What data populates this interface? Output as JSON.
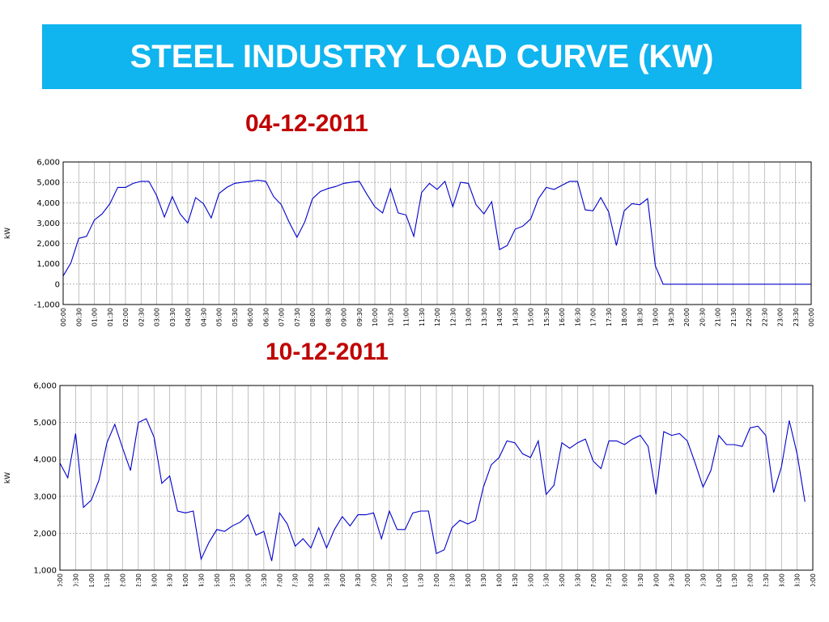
{
  "page": {
    "title": "STEEL INDUSTRY LOAD CURVE (KW)",
    "banner_color": "#10b4ee",
    "date_color": "#c00000",
    "line_color": "#0000cc"
  },
  "chart_data": [
    {
      "type": "line",
      "title": "04-12-2011",
      "ylabel": "kW",
      "xlabel": "",
      "ylim": [
        -1000,
        6000
      ],
      "yticks": [
        -1000,
        0,
        1000,
        2000,
        3000,
        4000,
        5000,
        6000
      ],
      "ytick_labels": [
        "-1,000",
        "0",
        "1,000",
        "2,000",
        "3,000",
        "4,000",
        "5,000",
        "6,000"
      ],
      "x_interval_minutes": 15,
      "xtick_labels": [
        "00:00",
        "00:30",
        "01:00",
        "01:30",
        "02:00",
        "02:30",
        "03:00",
        "03:30",
        "04:00",
        "04:30",
        "05:00",
        "05:30",
        "06:00",
        "06:30",
        "07:00",
        "07:30",
        "08:00",
        "08:30",
        "09:00",
        "09:30",
        "10:00",
        "10:30",
        "11:00",
        "11:30",
        "12:00",
        "12:30",
        "13:00",
        "13:30",
        "14:00",
        "14:30",
        "15:00",
        "15:30",
        "16:00",
        "16:30",
        "17:00",
        "17:30",
        "18:00",
        "18:30",
        "19:00",
        "19:30",
        "20:00",
        "20:30",
        "21:00",
        "21:30",
        "22:00",
        "22:30",
        "23:00",
        "23:30",
        "00:00"
      ],
      "grid": true,
      "series": [
        {
          "values": [
            400,
            1050,
            2250,
            2350,
            3150,
            3450,
            3950,
            4750,
            4750,
            4950,
            5050,
            5050,
            4350,
            3300,
            4300,
            3450,
            3000,
            4250,
            3950,
            3250,
            4450,
            4750,
            4950,
            5000,
            5050,
            5100,
            5050,
            4300,
            3900,
            3050,
            2300,
            3050,
            4200,
            4550,
            4700,
            4800,
            4950,
            5000,
            5050,
            4400,
            3800,
            3500,
            4700,
            3500,
            3400,
            2350,
            4500,
            4950,
            4650,
            5050,
            3800,
            5000,
            4950,
            3900,
            3450,
            4050,
            1700,
            1900,
            2700,
            2850,
            3200,
            4200,
            4750,
            4650,
            4850,
            5050,
            5050,
            3650,
            3600,
            4250,
            3550,
            1900,
            3600,
            3950,
            3900,
            4200,
            900,
            0,
            0,
            0,
            0,
            0,
            0,
            0,
            0,
            0,
            0,
            0,
            0,
            0,
            0,
            0,
            0,
            0,
            0,
            0,
            0
          ]
        }
      ]
    },
    {
      "type": "line",
      "title": "10-12-2011",
      "ylabel": "kW",
      "xlabel": "",
      "ylim": [
        1000,
        6000
      ],
      "yticks": [
        1000,
        2000,
        3000,
        4000,
        5000,
        6000
      ],
      "ytick_labels": [
        "1,000",
        "2,000",
        "3,000",
        "4,000",
        "5,000",
        "6,000"
      ],
      "x_interval_minutes": 15,
      "xtick_labels": [
        "00:00",
        "00:30",
        "01:00",
        "01:30",
        "02:00",
        "02:30",
        "03:00",
        "03:30",
        "04:00",
        "04:30",
        "05:00",
        "05:30",
        "06:00",
        "06:30",
        "07:00",
        "07:30",
        "08:00",
        "08:30",
        "09:00",
        "09:30",
        "10:00",
        "10:30",
        "11:00",
        "11:30",
        "12:00",
        "12:30",
        "13:00",
        "13:30",
        "14:00",
        "14:30",
        "15:00",
        "15:30",
        "16:00",
        "16:30",
        "17:00",
        "17:30",
        "18:00",
        "18:30",
        "19:00",
        "19:30",
        "20:00",
        "20:30",
        "21:00",
        "21:30",
        "22:00",
        "22:30",
        "23:00",
        "23:30",
        "00:00"
      ],
      "grid": true,
      "series": [
        {
          "values": [
            3900,
            3500,
            4700,
            2700,
            2900,
            3450,
            4450,
            4950,
            4300,
            3700,
            5000,
            5100,
            4600,
            3350,
            3550,
            2600,
            2550,
            2600,
            1300,
            1750,
            2100,
            2050,
            2200,
            2300,
            2500,
            1950,
            2050,
            1250,
            2550,
            2250,
            1650,
            1850,
            1600,
            2150,
            1600,
            2100,
            2450,
            2200,
            2500,
            2500,
            2550,
            1850,
            2600,
            2100,
            2100,
            2550,
            2600,
            2600,
            1450,
            1550,
            2150,
            2350,
            2250,
            2350,
            3250,
            3850,
            4050,
            4500,
            4450,
            4150,
            4050,
            4500,
            3050,
            3300,
            4450,
            4300,
            4450,
            4550,
            3950,
            3750,
            4500,
            4500,
            4400,
            4550,
            4650,
            4350,
            3050,
            4750,
            4650,
            4700,
            4500,
            3900,
            3250,
            3700,
            4650,
            4400,
            4400,
            4350,
            4850,
            4900,
            4650,
            3100,
            3800,
            5050,
            4150,
            2850
          ]
        }
      ]
    }
  ]
}
